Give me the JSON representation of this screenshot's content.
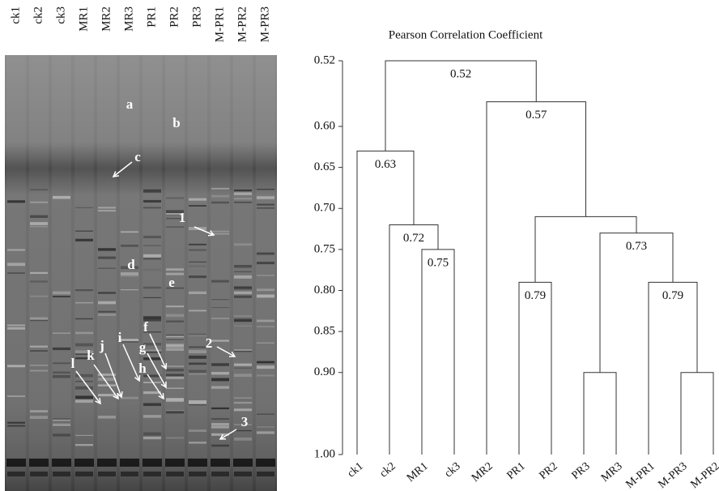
{
  "gel": {
    "lanes": [
      "ck1",
      "ck2",
      "ck3",
      "MR1",
      "MR2",
      "MR3",
      "PR1",
      "PR2",
      "PR3",
      "M-PR1",
      "M-PR2",
      "M-PR3"
    ],
    "annotations": [
      "a",
      "b",
      "c",
      "d",
      "e",
      "f",
      "g",
      "h",
      "i",
      "j",
      "k",
      "l",
      "1",
      "2",
      "3"
    ]
  },
  "chart_data": {
    "type": "dendrogram",
    "title": "Pearson Correlation Coefficient",
    "leaves": [
      "ck1",
      "ck2",
      "MR1",
      "ck3",
      "MR2",
      "PR1",
      "PR2",
      "PR3",
      "MR3",
      "M-PR1",
      "M-PR3",
      "M-PR2"
    ],
    "merges": [
      [
        2,
        3
      ],
      [
        1,
        12
      ],
      [
        0,
        13
      ],
      [
        7,
        8
      ],
      [
        10,
        11
      ],
      [
        9,
        16
      ],
      [
        15,
        17
      ],
      [
        5,
        6
      ],
      [
        19,
        18
      ],
      [
        4,
        20
      ],
      [
        14,
        21
      ]
    ],
    "values": [
      0.75,
      0.72,
      0.63,
      0.9,
      0.9,
      0.79,
      0.73,
      0.79,
      0.71,
      0.57,
      0.52
    ],
    "value_labels": [
      "0.75",
      "0.72",
      "0.63",
      null,
      null,
      "0.79",
      "0.73",
      "0.79",
      null,
      "0.57",
      "0.52"
    ],
    "ylim": [
      0.52,
      1.0
    ],
    "yticks": [
      0.52,
      {
        "value": 0.6,
        "label": "0.60"
      },
      0.65,
      {
        "value": 0.7,
        "label": "0.70"
      },
      0.75,
      {
        "value": 0.8,
        "label": "0.80"
      },
      0.85,
      {
        "value": 0.9,
        "label": "0.90"
      },
      {
        "value": 1,
        "label": "1.00"
      }
    ],
    "color": "#333333"
  }
}
